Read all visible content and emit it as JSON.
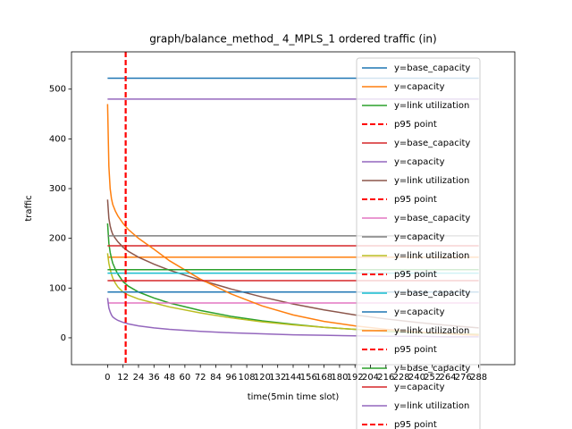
{
  "chart_data": {
    "type": "line",
    "title": "graph/balance_method_ 4_MPLS_1 ordered traffic (in)",
    "x_label": "time(5min time slot)",
    "y_label": "traffic",
    "x": [
      0,
      1,
      2,
      3,
      4,
      6,
      8,
      12,
      16,
      24,
      36,
      48,
      72,
      96,
      120,
      144,
      168,
      192,
      216,
      240,
      264,
      288
    ],
    "xlim": [
      -28,
      316
    ],
    "xticks": [
      0,
      12,
      24,
      36,
      48,
      60,
      72,
      84,
      96,
      108,
      120,
      132,
      144,
      156,
      168,
      180,
      192,
      204,
      216,
      228,
      240,
      252,
      264,
      276,
      288
    ],
    "ylim": [
      -54,
      575
    ],
    "yticks": [
      0,
      100,
      200,
      300,
      400,
      500
    ],
    "series": [
      {
        "name": "y=base_capacity",
        "color": "#1f77b4",
        "values": [
          522,
          522,
          522,
          522,
          522,
          522,
          522,
          522,
          522,
          522,
          522,
          522,
          522,
          522,
          522,
          522,
          522,
          522,
          522,
          522,
          522,
          522
        ]
      },
      {
        "name": "y=capacity",
        "color": "#ff7f0e",
        "values": [
          162,
          162,
          162,
          162,
          162,
          162,
          162,
          162,
          162,
          162,
          162,
          162,
          162,
          162,
          162,
          162,
          162,
          162,
          162,
          162,
          162,
          162
        ]
      },
      {
        "name": "y=link utilization",
        "color": "#2ca02c",
        "values": [
          230,
          190,
          172,
          160,
          150,
          138,
          128,
          113,
          104,
          92,
          80,
          70,
          55,
          43,
          34,
          27,
          21,
          17,
          13,
          10,
          8,
          6
        ]
      },
      {
        "name": "p95 point",
        "color": "#ff0000",
        "dashed": true,
        "x_at": 14
      },
      {
        "name": "y=base_capacity",
        "color": "#d62728",
        "values": [
          185,
          185,
          185,
          185,
          185,
          185,
          185,
          185,
          185,
          185,
          185,
          185,
          185,
          185,
          185,
          185,
          185,
          185,
          185,
          185,
          185,
          185
        ]
      },
      {
        "name": "y=capacity",
        "color": "#9467bd",
        "values": [
          480,
          480,
          480,
          480,
          480,
          480,
          480,
          480,
          480,
          480,
          480,
          480,
          480,
          480,
          480,
          480,
          480,
          480,
          480,
          480,
          480,
          480
        ]
      },
      {
        "name": "y=link utilization",
        "color": "#8c564b",
        "values": [
          278,
          240,
          225,
          215,
          208,
          200,
          193,
          182,
          174,
          162,
          148,
          136,
          116,
          98,
          82,
          68,
          56,
          46,
          38,
          31,
          25,
          20
        ]
      },
      {
        "name": "p95 point",
        "color": "#ff0000",
        "dashed": true,
        "x_at": 14
      },
      {
        "name": "y=base_capacity",
        "color": "#e377c2",
        "values": [
          70,
          70,
          70,
          70,
          70,
          70,
          70,
          70,
          70,
          70,
          70,
          70,
          70,
          70,
          70,
          70,
          70,
          70,
          70,
          70,
          70,
          70
        ]
      },
      {
        "name": "y=capacity",
        "color": "#7f7f7f",
        "values": [
          205,
          205,
          205,
          205,
          205,
          205,
          205,
          205,
          205,
          205,
          205,
          205,
          205,
          205,
          205,
          205,
          205,
          205,
          205,
          205,
          205,
          205
        ]
      },
      {
        "name": "y=link utilization",
        "color": "#bcbd22",
        "values": [
          170,
          150,
          138,
          128,
          120,
          110,
          102,
          92,
          86,
          78,
          70,
          62,
          50,
          40,
          32,
          26,
          21,
          17,
          14,
          11,
          9,
          7
        ]
      },
      {
        "name": "p95 point",
        "color": "#ff0000",
        "dashed": true,
        "x_at": 14
      },
      {
        "name": "y=base_capacity",
        "color": "#17becf",
        "values": [
          130,
          130,
          130,
          130,
          130,
          130,
          130,
          130,
          130,
          130,
          130,
          130,
          130,
          130,
          130,
          130,
          130,
          130,
          130,
          130,
          130,
          130
        ]
      },
      {
        "name": "y=capacity",
        "color": "#1f77b4",
        "values": [
          92,
          92,
          92,
          92,
          92,
          92,
          92,
          92,
          92,
          92,
          92,
          92,
          92,
          92,
          92,
          92,
          92,
          92,
          92,
          92,
          92,
          92
        ]
      },
      {
        "name": "y=link utilization",
        "color": "#ff7f0e",
        "values": [
          470,
          345,
          300,
          280,
          268,
          255,
          245,
          230,
          218,
          200,
          178,
          155,
          118,
          88,
          64,
          46,
          33,
          24,
          17,
          12,
          8,
          5
        ]
      },
      {
        "name": "p95 point",
        "color": "#ff0000",
        "dashed": true,
        "x_at": 14
      },
      {
        "name": "y=base_capacity",
        "color": "#2ca02c",
        "values": [
          137,
          137,
          137,
          137,
          137,
          137,
          137,
          137,
          137,
          137,
          137,
          137,
          137,
          137,
          137,
          137,
          137,
          137,
          137,
          137,
          137,
          137
        ]
      },
      {
        "name": "y=capacity",
        "color": "#d62728",
        "values": [
          115,
          115,
          115,
          115,
          115,
          115,
          115,
          115,
          115,
          115,
          115,
          115,
          115,
          115,
          115,
          115,
          115,
          115,
          115,
          115,
          115,
          115
        ]
      },
      {
        "name": "y=link utilization",
        "color": "#9467bd",
        "values": [
          80,
          60,
          52,
          46,
          42,
          38,
          35,
          31,
          28,
          24,
          20,
          17,
          13,
          10,
          8,
          6,
          5,
          4,
          3,
          3,
          2,
          2
        ]
      },
      {
        "name": "p95 point",
        "color": "#ff0000",
        "dashed": true,
        "x_at": 14
      }
    ]
  }
}
